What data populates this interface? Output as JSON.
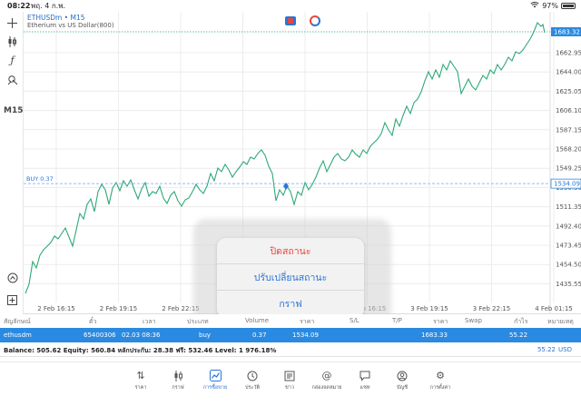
{
  "status_bar": {
    "time": "08:22",
    "date": "พฤ. 4 ก.พ.",
    "battery": "97%"
  },
  "left_toolbar": {
    "timeframe": "M15"
  },
  "chart": {
    "symbol": "ETHUSDm • M15",
    "description": "Etherium vs US Dollar(800)",
    "current_price": "1683.32",
    "buy_line_label": "BUY 0.37",
    "buy_price": "1534.09",
    "price_labels": [
      "1662.95",
      "1644.00",
      "1625.05",
      "1606.10",
      "1587.15",
      "1568.20",
      "1549.25",
      "1530.30",
      "1511.35",
      "1492.40",
      "1473.45",
      "1454.50",
      "1435.55"
    ],
    "time_labels": [
      "2 Feb 16:15",
      "2 Feb 19:15",
      "2 Feb 22:15",
      "3 Feb 01:15",
      "3 Feb 13:15",
      "3 Feb 16:15",
      "3 Feb 19:15",
      "3 Feb 22:15",
      "4 Feb 01:15"
    ],
    "colors": {
      "line": "#2fa877",
      "price_tag": "#2a8ae2",
      "grid": "#ececec",
      "trade_line": "#6aaee8"
    }
  },
  "popup": {
    "close": "ปิดสถานะ",
    "modify": "ปรับเปลี่ยนสถานะ",
    "chart": "กราฟ"
  },
  "table": {
    "headers": [
      "สัญลักษณ์",
      "ตั๋ว",
      "เวลา",
      "ประเภท",
      "Volume",
      "ราคา",
      "S/L",
      "T/P",
      "ราคา",
      "Swap",
      "กำไร",
      "หมายเหตุ"
    ],
    "row": {
      "symbol": "ethusdm",
      "ticket": "65400306",
      "time": "02.03 08:36",
      "type": "buy",
      "volume": "0.37",
      "open": "1534.09",
      "current": "1683.33",
      "profit": "55.22"
    }
  },
  "balance": {
    "text": "Balance: 505.62 Equity: 560.84 หลักประกัน: 28.38 ฟรี: 532.46 Level: 1 976.18%",
    "profit": "55.22",
    "currency": "USD"
  },
  "tabs": [
    {
      "label": "ราคา",
      "icon": "quotes-icon"
    },
    {
      "label": "กราฟ",
      "icon": "chart-icon"
    },
    {
      "label": "การซื้อขาย",
      "icon": "trade-icon",
      "active": true
    },
    {
      "label": "ประวัติ",
      "icon": "history-icon"
    },
    {
      "label": "ข่าว",
      "icon": "news-icon"
    },
    {
      "label": "กล่องจดหมาย",
      "icon": "mailbox-icon"
    },
    {
      "label": "แชท",
      "icon": "chat-icon"
    },
    {
      "label": "บัญชี",
      "icon": "account-icon"
    },
    {
      "label": "การตั้งค่า",
      "icon": "settings-icon"
    }
  ]
}
